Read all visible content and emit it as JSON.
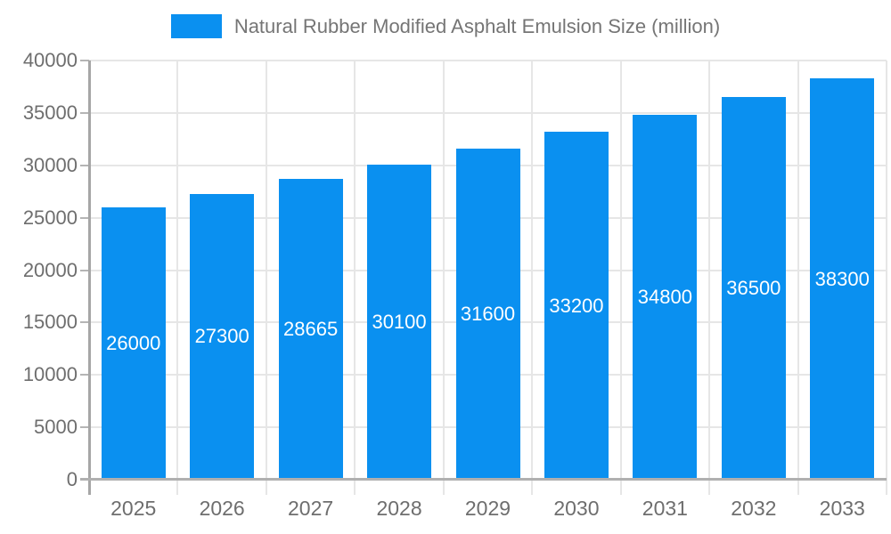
{
  "legend": {
    "label": "Natural Rubber Modified Asphalt Emulsion Size (million)"
  },
  "colors": {
    "bar": "#0a90f0",
    "gridline": "#e6e6e6",
    "axis_line": "#a6a6a6",
    "baseline": "#b0b0b0",
    "tick": "#b5b5b5",
    "axis_label": "#6e6e6e",
    "legend_text": "#757575",
    "value_label": "#ffffff",
    "background": "#ffffff"
  },
  "chart_data": {
    "type": "bar",
    "title": "Natural Rubber Modified Asphalt Emulsion Size (million)",
    "categories": [
      "2025",
      "2026",
      "2027",
      "2028",
      "2029",
      "2030",
      "2031",
      "2032",
      "2033"
    ],
    "values": [
      26000,
      27300,
      28665,
      30100,
      31600,
      33200,
      34800,
      36500,
      38300
    ],
    "xlabel": "",
    "ylabel": "",
    "ylim": [
      0,
      40000
    ],
    "yticks": [
      0,
      5000,
      10000,
      15000,
      20000,
      25000,
      30000,
      35000,
      40000
    ],
    "grid": true,
    "legend_position": "top",
    "value_labels": "inside-center"
  }
}
